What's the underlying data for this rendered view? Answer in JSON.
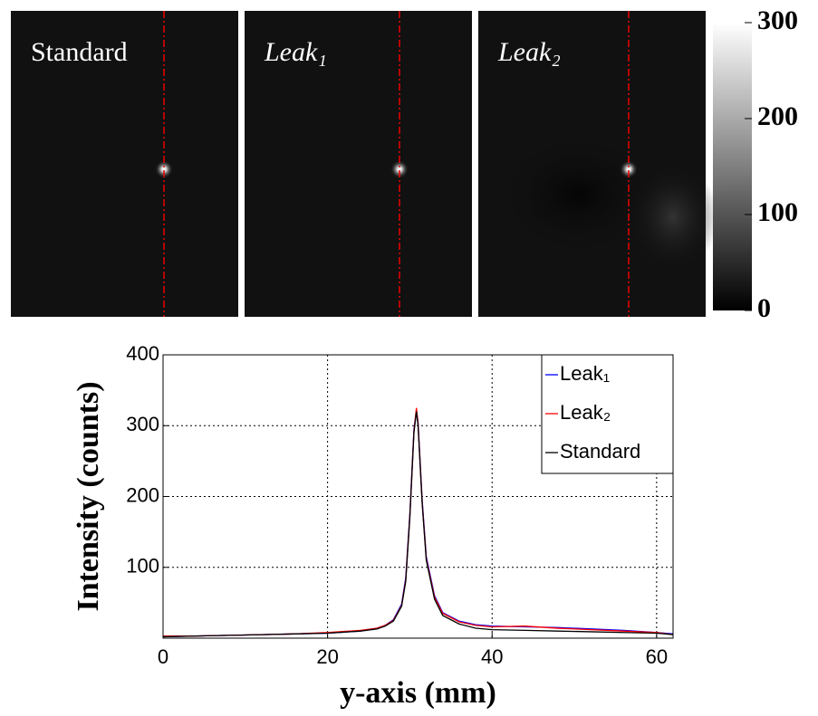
{
  "chart_data": [
    {
      "type": "image",
      "panels": [
        {
          "label": "Standard",
          "italic": false
        },
        {
          "label": "Leak₁",
          "italic": true
        },
        {
          "label": "Leak₂",
          "italic": true
        }
      ],
      "colorbar": {
        "clim": [
          0,
          300
        ],
        "ticks": [
          0,
          100,
          200,
          300
        ]
      }
    },
    {
      "type": "line",
      "xlabel": "y-axis (mm)",
      "ylabel": "Intensity (counts)",
      "xlim": [
        0,
        62
      ],
      "ylim": [
        0,
        400
      ],
      "xticks": [
        0,
        20,
        40,
        60
      ],
      "yticks": [
        100,
        200,
        300,
        400
      ],
      "grid": true,
      "legend": "upper right",
      "x": [
        0,
        4,
        8,
        12,
        16,
        20,
        24,
        26,
        27,
        28,
        29,
        29.5,
        30,
        30.5,
        30.8,
        31,
        31.5,
        32,
        33,
        34,
        36,
        38,
        40,
        44,
        48,
        52,
        56,
        60,
        62
      ],
      "series": [
        {
          "name": "Leak₁",
          "color": "#0000ff",
          "values": [
            2,
            3,
            4,
            5,
            6,
            7,
            10,
            14,
            18,
            26,
            48,
            85,
            175,
            295,
            322,
            305,
            195,
            115,
            60,
            36,
            24,
            19,
            17,
            16,
            15,
            13,
            11,
            8,
            6
          ]
        },
        {
          "name": "Leak₂",
          "color": "#ff0000",
          "values": [
            3,
            3,
            4,
            5,
            6,
            8,
            11,
            14,
            18,
            25,
            46,
            82,
            172,
            292,
            325,
            303,
            192,
            112,
            58,
            35,
            23,
            18,
            16,
            17,
            14,
            12,
            10,
            8,
            5
          ]
        },
        {
          "name": "Standard",
          "color": "#000000",
          "values": [
            2,
            3,
            4,
            5,
            6,
            7,
            10,
            13,
            17,
            24,
            45,
            80,
            170,
            290,
            320,
            300,
            190,
            110,
            55,
            32,
            20,
            14,
            12,
            11,
            10,
            9,
            8,
            7,
            5
          ]
        }
      ]
    }
  ]
}
